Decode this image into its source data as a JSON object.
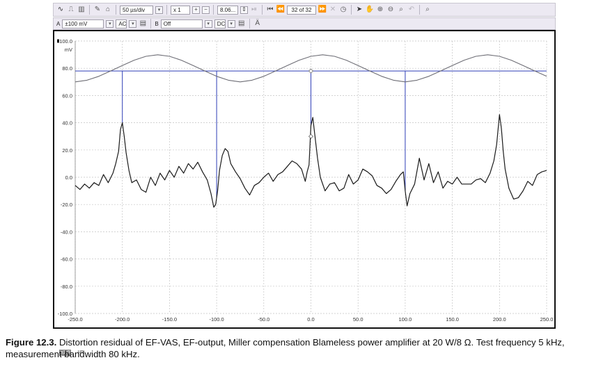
{
  "toolbar": {
    "timebase": "50 µs/div",
    "zoom": "x 1",
    "value_field": "8.06...",
    "buffer": "32 of 32"
  },
  "channels": {
    "a_label": "A",
    "a_range": "±100 mV",
    "a_coupling": "AC",
    "b_label": "B",
    "b_range": "Off",
    "b_coupling": "DC"
  },
  "icons": {
    "scope_mode": "sine-wave-icon",
    "persistence_mode": "pulse-icon",
    "spectrum_mode": "spectrum-icon",
    "probe": "probe-icon",
    "home": "home-icon",
    "first_buffer": "first-buffer-icon",
    "prev_buffer": "prev-buffer-icon",
    "next_buffer": "next-buffer-icon",
    "cancel": "cancel-icon",
    "clock": "clock-icon",
    "pointer": "pointer-icon",
    "hand": "hand-icon",
    "zoom_in": "zoom-in-icon",
    "zoom_out": "zoom-out-icon",
    "zoom_area": "zoom-area-icon",
    "undo": "undo-icon",
    "zoom_fit": "zoom-fit-icon",
    "math": "math-icon"
  },
  "axis": {
    "yunit": "mV",
    "xunit": "µs",
    "x_multiplier": "x1.0",
    "y_ticks": [
      "100.0",
      "80.0",
      "60.0",
      "40.0",
      "20.0",
      "0.0",
      "-20.0",
      "-40.0",
      "-60.0",
      "-80.0",
      "-100.0"
    ],
    "x_ticks": [
      "-250.0",
      "-200.0",
      "-150.0",
      "-100.0",
      "-50.0",
      "0.0",
      "50.0",
      "100.0",
      "150.0",
      "200.0",
      "250.0"
    ]
  },
  "chart_data": {
    "type": "line",
    "xlim": [
      -250,
      250
    ],
    "ylim": [
      -100,
      100
    ],
    "grid": true,
    "series": [
      {
        "color": "#6d6d75",
        "x": [
          -250,
          -237.5,
          -225,
          -212.5,
          -200,
          -187.5,
          -175,
          -162.5,
          -150,
          -137.5,
          -125,
          -112.5,
          -100,
          -87.5,
          -75,
          -62.5,
          -50,
          -37.5,
          -25,
          -12.5,
          0,
          12.5,
          25,
          37.5,
          50,
          62.5,
          75,
          87.5,
          100,
          112.5,
          125,
          137.5,
          150,
          162.5,
          175,
          187.5,
          200,
          212.5,
          225,
          237.5,
          250
        ],
        "y": [
          70,
          71.2,
          74.1,
          78,
          82,
          85.9,
          88.8,
          89.9,
          88.8,
          85.9,
          82,
          78,
          74.1,
          71.2,
          70,
          71.2,
          74.1,
          78,
          82,
          85.9,
          88.8,
          89.9,
          88.8,
          85.9,
          82,
          78,
          74.1,
          71.2,
          70,
          71.2,
          74.1,
          78,
          82,
          85.9,
          88.8,
          89.9,
          88.8,
          85.9,
          82,
          78,
          74.1
        ]
      },
      {
        "color": "#1a1a1a",
        "x": [
          -250,
          -245,
          -240,
          -235,
          -230,
          -225,
          -220,
          -215,
          -210,
          -207,
          -204,
          -202,
          -200,
          -198,
          -196,
          -193,
          -190,
          -185,
          -180,
          -175,
          -170,
          -165,
          -160,
          -155,
          -150,
          -145,
          -140,
          -135,
          -130,
          -125,
          -120,
          -115,
          -110,
          -106,
          -103,
          -101,
          -99,
          -97,
          -94,
          -91,
          -88,
          -85,
          -80,
          -75,
          -70,
          -65,
          -60,
          -55,
          -50,
          -45,
          -40,
          -35,
          -30,
          -25,
          -20,
          -15,
          -10,
          -6,
          -4,
          -2,
          0,
          2,
          4,
          7,
          10,
          15,
          20,
          25,
          30,
          35,
          40,
          45,
          50,
          55,
          60,
          65,
          70,
          75,
          80,
          85,
          90,
          95,
          98,
          100,
          102,
          105,
          110,
          115,
          120,
          125,
          130,
          135,
          140,
          145,
          150,
          155,
          160,
          165,
          170,
          175,
          180,
          185,
          190,
          194,
          197,
          200,
          202,
          204,
          206,
          210,
          215,
          220,
          225,
          230,
          235,
          240,
          245,
          250
        ],
        "y": [
          -6,
          -9,
          -5,
          -8,
          -4,
          -6,
          2,
          -4,
          3,
          10,
          19,
          35,
          40,
          30,
          18,
          5,
          -4,
          -2,
          -9,
          -11,
          0,
          -6,
          3,
          -2,
          5,
          0,
          8,
          3,
          10,
          6,
          11,
          4,
          -2,
          -12,
          -22,
          -20,
          -10,
          5,
          16,
          21,
          19,
          10,
          4,
          -1,
          -8,
          -13,
          -6,
          -4,
          0,
          3,
          -3,
          2,
          4,
          8,
          12,
          10,
          6,
          -3,
          4,
          9,
          38,
          44,
          32,
          14,
          0,
          -10,
          -5,
          -4,
          -10,
          -8,
          2,
          -5,
          -2,
          6,
          4,
          1,
          -6,
          -8,
          -12,
          -9,
          -3,
          2,
          4,
          -10,
          -21,
          -12,
          -5,
          14,
          -2,
          10,
          -4,
          4,
          -8,
          -3,
          -5,
          0,
          -5,
          -5,
          -5,
          -2,
          -1,
          -4,
          3,
          12,
          24,
          46,
          36,
          19,
          6,
          -8,
          -16,
          -15,
          -10,
          -3,
          -6,
          2,
          4,
          5
        ]
      }
    ],
    "cursors": {
      "horizontal_y": 78,
      "vertical_x": [
        -200,
        -100,
        0,
        100
      ],
      "markers": [
        {
          "x": 0,
          "y": 78
        },
        {
          "x": 0,
          "y": 30
        }
      ]
    }
  },
  "caption": {
    "label": "Figure 12.3.",
    "text": "Distortion residual of EF-VAS, EF-output, Miller compensation Blameless power amplifier at 20 W/8 Ω. Test frequency 5 kHz, measurement bandwidth 80 kHz."
  }
}
